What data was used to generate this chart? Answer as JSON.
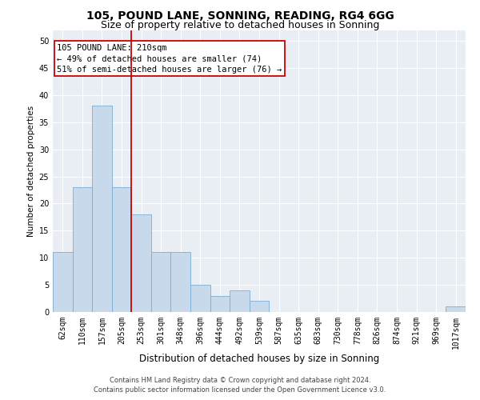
{
  "title1": "105, POUND LANE, SONNING, READING, RG4 6GG",
  "title2": "Size of property relative to detached houses in Sonning",
  "xlabel": "Distribution of detached houses by size in Sonning",
  "ylabel": "Number of detached properties",
  "categories": [
    "62sqm",
    "110sqm",
    "157sqm",
    "205sqm",
    "253sqm",
    "301sqm",
    "348sqm",
    "396sqm",
    "444sqm",
    "492sqm",
    "539sqm",
    "587sqm",
    "635sqm",
    "683sqm",
    "730sqm",
    "778sqm",
    "826sqm",
    "874sqm",
    "921sqm",
    "969sqm",
    "1017sqm"
  ],
  "values": [
    11,
    23,
    38,
    23,
    18,
    11,
    11,
    5,
    3,
    4,
    2,
    0,
    0,
    0,
    0,
    0,
    0,
    0,
    0,
    0,
    1
  ],
  "bar_color": "#c9d9ec",
  "bar_edgecolor": "#7aadd4",
  "vline_x": 3.5,
  "vline_color": "#cc0000",
  "annotation_line1": "105 POUND LANE: 210sqm",
  "annotation_line2": "← 49% of detached houses are smaller (74)",
  "annotation_line3": "51% of semi-detached houses are larger (76) →",
  "annotation_box_color": "#ffffff",
  "annotation_box_edgecolor": "#cc0000",
  "ylim": [
    0,
    52
  ],
  "yticks": [
    0,
    5,
    10,
    15,
    20,
    25,
    30,
    35,
    40,
    45,
    50
  ],
  "background_color": "#e8eef4",
  "footer1": "Contains HM Land Registry data © Crown copyright and database right 2024.",
  "footer2": "Contains public sector information licensed under the Open Government Licence v3.0.",
  "title1_fontsize": 10,
  "title2_fontsize": 9,
  "xlabel_fontsize": 8.5,
  "ylabel_fontsize": 7.5,
  "tick_fontsize": 7,
  "annotation_fontsize": 7.5,
  "footer_fontsize": 6
}
